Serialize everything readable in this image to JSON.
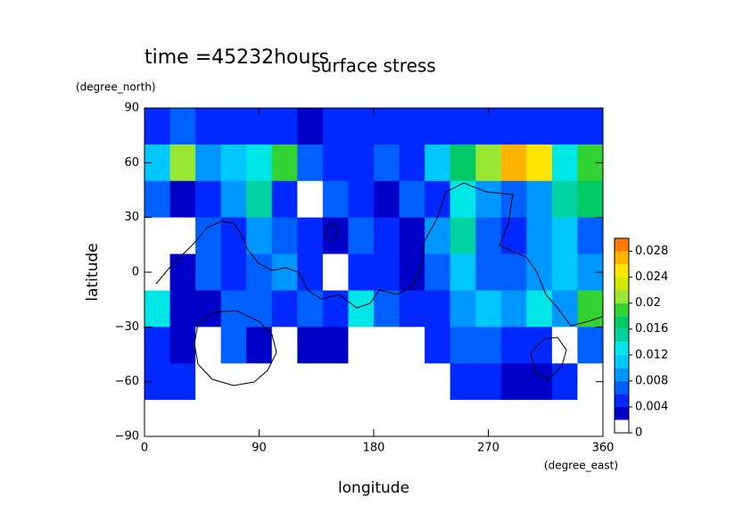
{
  "chart_data": {
    "type": "contour",
    "title": "surface stress",
    "subtitle": "time =45232hours",
    "xlabel": "longitude",
    "xunit": "(degree_east)",
    "ylabel": "latitude",
    "yunit": "(degree_north)",
    "xlim": [
      0,
      360
    ],
    "ylim": [
      -90,
      90
    ],
    "xticks": [
      0,
      90,
      180,
      270,
      360
    ],
    "yticks": [
      90,
      60,
      30,
      0,
      {
        "value": -30,
        "label": "−30"
      },
      {
        "value": -60,
        "label": "−60"
      },
      {
        "value": -90,
        "label": "−90"
      }
    ],
    "x": [
      10,
      30,
      50,
      70,
      90,
      110,
      130,
      150,
      170,
      190,
      210,
      230,
      250,
      270,
      290,
      310,
      330,
      350
    ],
    "y": [
      80,
      60,
      40,
      20,
      0,
      -20,
      -40,
      -60,
      -80
    ],
    "z": [
      [
        0.005,
        0.006,
        0.004,
        0.004,
        0.005,
        0.004,
        0.003,
        0.004,
        0.004,
        0.005,
        0.004,
        0.004,
        0.005,
        0.005,
        0.004,
        0.005,
        0.005,
        0.004
      ],
      [
        0.01,
        0.02,
        0.008,
        0.01,
        0.012,
        0.018,
        0.006,
        0.004,
        0.004,
        0.006,
        0.004,
        0.01,
        0.016,
        0.02,
        0.026,
        0.024,
        0.012,
        0.018
      ],
      [
        0.006,
        0.002,
        0.004,
        0.008,
        0.014,
        0.004,
        0.001,
        0.006,
        0.004,
        0.002,
        0.006,
        0.004,
        0.012,
        0.008,
        0.006,
        0.008,
        0.014,
        0.016
      ],
      [
        0.001,
        0.001,
        0.006,
        0.004,
        0.008,
        0.006,
        0.004,
        0.002,
        0.006,
        0.004,
        0.002,
        0.008,
        0.014,
        0.006,
        0.004,
        0.008,
        0.01,
        0.006
      ],
      [
        0.001,
        0.002,
        0.006,
        0.004,
        0.006,
        0.008,
        0.004,
        0.001,
        0.004,
        0.004,
        0.002,
        0.006,
        0.01,
        0.006,
        0.006,
        0.008,
        0.01,
        0.008
      ],
      [
        0.012,
        0.002,
        0.002,
        0.006,
        0.006,
        0.004,
        0.006,
        0.004,
        0.012,
        0.006,
        0.004,
        0.004,
        0.008,
        0.01,
        0.008,
        0.012,
        0.008,
        0.018
      ],
      [
        0.004,
        0.002,
        0.001,
        0.006,
        0.002,
        0.001,
        0.002,
        0.002,
        0.001,
        0.001,
        0.001,
        0.004,
        0.006,
        0.006,
        0.004,
        0.004,
        0.001,
        0.006
      ],
      [
        0.004,
        0.004,
        0.001,
        0.001,
        0.001,
        0.001,
        0.001,
        0.001,
        0.001,
        0.001,
        0.001,
        0.001,
        0.004,
        0.004,
        0.002,
        0.002,
        0.004,
        0.001
      ],
      [
        0,
        0,
        0,
        0,
        0,
        0,
        0,
        0,
        0,
        0,
        0,
        0,
        0,
        0,
        0,
        0,
        0,
        0
      ]
    ],
    "colorbar": {
      "levels": [
        0,
        0.002,
        0.004,
        0.006,
        0.008,
        0.01,
        0.012,
        0.014,
        0.016,
        0.018,
        0.02,
        0.022,
        0.024,
        0.026,
        0.028,
        0.03
      ],
      "colors": [
        "#ffffff",
        "#0000c8",
        "#0028ff",
        "#0060ff",
        "#0096ff",
        "#00c8ff",
        "#00e6e6",
        "#00d2a0",
        "#00c864",
        "#32d232",
        "#96e632",
        "#d2e600",
        "#ffe600",
        "#ffb400",
        "#ff7800"
      ],
      "ticks": [
        0,
        0.004,
        0.008,
        0.012,
        0.016,
        0.02,
        0.024,
        0.028
      ]
    }
  }
}
